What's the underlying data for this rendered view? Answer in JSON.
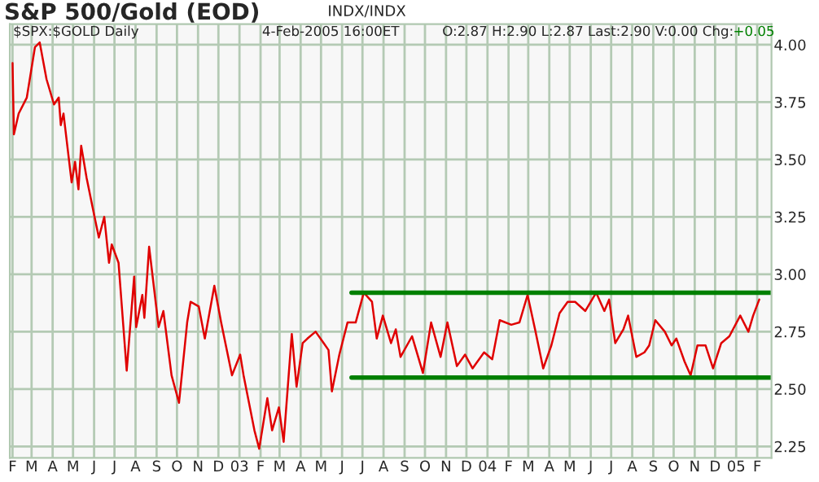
{
  "chart_data": {
    "type": "line",
    "title": "S&P 500/Gold (EOD)",
    "subtitle": "INDX/INDX",
    "annotations": [
      "$SPX:$GOLD Daily",
      "4-Feb-2005 16:00ET",
      "O:2.87 H:2.90 L:2.87 Last:2.90 V:0.00 Chg:",
      "+0.05"
    ],
    "series": [
      {
        "color": "#e00000",
        "x": [
          "2002-02-01",
          "2002-02-03",
          "2002-02-10",
          "2002-02-22",
          "2002-03-06",
          "2002-03-13",
          "2002-03-23",
          "2002-04-03",
          "2002-04-10",
          "2002-04-13",
          "2002-04-17",
          "2002-04-29",
          "2002-05-04",
          "2002-05-09",
          "2002-05-13",
          "2002-05-21",
          "2002-06-01",
          "2002-06-08",
          "2002-06-16",
          "2002-06-23",
          "2002-06-27",
          "2002-07-07",
          "2002-07-19",
          "2002-07-30",
          "2002-08-02",
          "2002-08-11",
          "2002-08-14",
          "2002-08-21",
          "2002-08-25",
          "2002-09-04",
          "2002-09-11",
          "2002-09-23",
          "2002-10-04",
          "2002-10-16",
          "2002-10-21",
          "2002-11-02",
          "2002-11-11",
          "2002-11-25",
          "2002-12-05",
          "2002-12-21",
          "2003-01-02",
          "2003-01-07",
          "2003-01-23",
          "2003-01-30",
          "2003-02-11",
          "2003-02-18",
          "2003-02-28",
          "2003-03-07",
          "2003-03-19",
          "2003-03-26",
          "2003-04-04",
          "2003-04-11",
          "2003-04-23",
          "2003-05-05",
          "2003-05-12",
          "2003-05-17",
          "2003-05-28",
          "2003-06-09",
          "2003-06-21",
          "2003-07-03",
          "2003-07-15",
          "2003-07-22",
          "2003-07-31",
          "2003-08-12",
          "2003-08-19",
          "2003-08-26",
          "2003-09-12",
          "2003-09-28",
          "2003-10-10",
          "2003-10-24",
          "2003-11-03",
          "2003-11-17",
          "2003-11-29",
          "2003-12-10",
          "2003-12-27",
          "2004-01-08",
          "2004-01-19",
          "2004-02-05",
          "2004-02-17",
          "2004-02-29",
          "2004-03-11",
          "2004-03-23",
          "2004-04-04",
          "2004-04-16",
          "2004-04-28",
          "2004-05-09",
          "2004-05-24",
          "2004-06-09",
          "2004-06-21",
          "2004-06-28",
          "2004-07-07",
          "2004-07-19",
          "2004-07-26",
          "2004-08-07",
          "2004-08-19",
          "2004-08-26",
          "2004-09-04",
          "2004-09-18",
          "2004-09-28",
          "2004-10-05",
          "2004-10-17",
          "2004-10-26",
          "2004-11-05",
          "2004-11-17",
          "2004-11-28",
          "2004-12-10",
          "2004-12-22",
          "2005-01-07",
          "2005-01-19",
          "2005-01-26",
          "2005-02-04"
        ],
        "values": [
          3.92,
          3.61,
          3.7,
          3.77,
          3.99,
          4.01,
          3.85,
          3.74,
          3.77,
          3.65,
          3.7,
          3.4,
          3.49,
          3.37,
          3.56,
          3.42,
          3.26,
          3.16,
          3.25,
          3.05,
          3.13,
          3.05,
          2.58,
          2.99,
          2.77,
          2.91,
          2.81,
          3.12,
          3.02,
          2.77,
          2.84,
          2.56,
          2.44,
          2.79,
          2.88,
          2.86,
          2.72,
          2.95,
          2.79,
          2.56,
          2.65,
          2.56,
          2.32,
          2.24,
          2.46,
          2.32,
          2.42,
          2.27,
          2.74,
          2.51,
          2.7,
          2.72,
          2.75,
          2.7,
          2.67,
          2.49,
          2.65,
          2.79,
          2.79,
          2.92,
          2.88,
          2.72,
          2.82,
          2.7,
          2.76,
          2.64,
          2.73,
          2.57,
          2.79,
          2.64,
          2.79,
          2.6,
          2.65,
          2.59,
          2.66,
          2.63,
          2.8,
          2.78,
          2.79,
          2.91,
          2.76,
          2.59,
          2.69,
          2.83,
          2.88,
          2.88,
          2.84,
          2.92,
          2.84,
          2.89,
          2.7,
          2.76,
          2.82,
          2.64,
          2.66,
          2.69,
          2.8,
          2.75,
          2.69,
          2.72,
          2.62,
          2.56,
          2.69,
          2.69,
          2.59,
          2.7,
          2.73,
          2.82,
          2.75,
          2.82,
          2.89
        ]
      },
      {
        "color": "#008000",
        "x": [
          "2003-06-15",
          "2005-02-22"
        ],
        "values": [
          2.92,
          2.92
        ]
      },
      {
        "color": "#008000",
        "x": [
          "2003-06-15",
          "2005-02-22"
        ],
        "values": [
          2.55,
          2.55
        ]
      }
    ],
    "xlim": [
      "2002-01-28",
      "2005-02-22"
    ],
    "xticks": [
      {
        "value": "2002-02-01",
        "label": "F"
      },
      {
        "value": "2002-03-01",
        "label": "M"
      },
      {
        "value": "2002-04-01",
        "label": "A"
      },
      {
        "value": "2002-05-01",
        "label": "M"
      },
      {
        "value": "2002-06-01",
        "label": "J"
      },
      {
        "value": "2002-07-01",
        "label": "J"
      },
      {
        "value": "2002-08-01",
        "label": "A"
      },
      {
        "value": "2002-09-01",
        "label": "S"
      },
      {
        "value": "2002-10-01",
        "label": "O"
      },
      {
        "value": "2002-11-01",
        "label": "N"
      },
      {
        "value": "2002-12-01",
        "label": "D"
      },
      {
        "value": "2003-01-01",
        "label": "03"
      },
      {
        "value": "2003-02-01",
        "label": "F"
      },
      {
        "value": "2003-03-01",
        "label": "M"
      },
      {
        "value": "2003-04-01",
        "label": "A"
      },
      {
        "value": "2003-05-01",
        "label": "M"
      },
      {
        "value": "2003-06-01",
        "label": "J"
      },
      {
        "value": "2003-07-01",
        "label": "J"
      },
      {
        "value": "2003-08-01",
        "label": "A"
      },
      {
        "value": "2003-09-01",
        "label": "S"
      },
      {
        "value": "2003-10-01",
        "label": "O"
      },
      {
        "value": "2003-11-01",
        "label": "N"
      },
      {
        "value": "2003-12-01",
        "label": "D"
      },
      {
        "value": "2004-01-01",
        "label": "04"
      },
      {
        "value": "2004-02-01",
        "label": "F"
      },
      {
        "value": "2004-03-01",
        "label": "M"
      },
      {
        "value": "2004-04-01",
        "label": "A"
      },
      {
        "value": "2004-05-01",
        "label": "M"
      },
      {
        "value": "2004-06-01",
        "label": "J"
      },
      {
        "value": "2004-07-01",
        "label": "J"
      },
      {
        "value": "2004-08-01",
        "label": "A"
      },
      {
        "value": "2004-09-01",
        "label": "S"
      },
      {
        "value": "2004-10-01",
        "label": "O"
      },
      {
        "value": "2004-11-01",
        "label": "N"
      },
      {
        "value": "2004-12-01",
        "label": "D"
      },
      {
        "value": "2005-01-01",
        "label": "05"
      },
      {
        "value": "2005-02-01",
        "label": "F"
      }
    ],
    "ylim": [
      2.2,
      4.09
    ],
    "yticks": [
      {
        "value": 2.25,
        "label": "2.25"
      },
      {
        "value": 2.5,
        "label": "2.50"
      },
      {
        "value": 2.75,
        "label": "2.75"
      },
      {
        "value": 3.0,
        "label": "3.00"
      },
      {
        "value": 3.25,
        "label": "3.25"
      },
      {
        "value": 3.5,
        "label": "3.50"
      },
      {
        "value": 3.75,
        "label": "3.75"
      },
      {
        "value": 4.0,
        "label": "4.00"
      }
    ],
    "grid": true
  }
}
